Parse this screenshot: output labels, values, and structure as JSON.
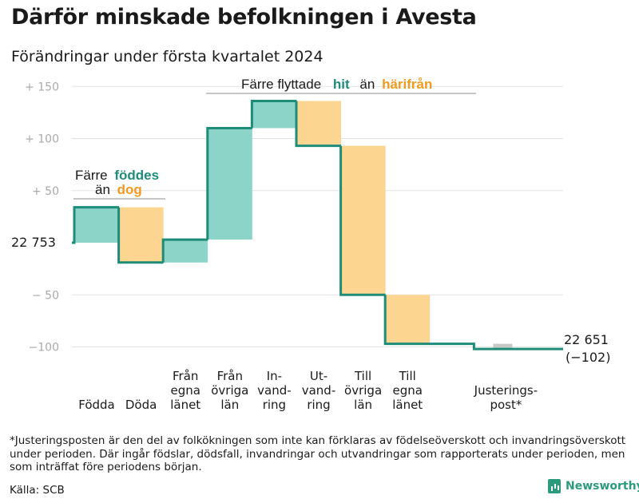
{
  "title": "Därför minskade befolkningen i Avesta",
  "subtitle": "Förändringar under första kvartalet 2024",
  "footnote": "*Justeringsposten är den del av folkökningen som inte kan förklaras av födelseöverskott och invandringsöverskott under perioden. Där ingår födslar, dödsfall, invandringar och utvandringar som rapporterats under perioden, men som inträffat före periodens början.",
  "source": "Källa: SCB",
  "brand": "Newsworthy",
  "colors": {
    "increase": "#8cd3c8",
    "decrease": "#fcd690",
    "adjustment": "#c8c8c8",
    "line": "#1d8c78",
    "teal_text": "#1d8c78",
    "orange_text": "#f29a1f",
    "grid": "#e3e3e3",
    "tick_text": "#aaaaaa"
  },
  "chart_data": {
    "type": "waterfall",
    "start_value": 22753,
    "start_label": "22  753",
    "end_value": 22651,
    "end_label": "22 651",
    "end_change_label": "(−102)",
    "ylim": [
      -100,
      150
    ],
    "yticks": [
      {
        "value": 150,
        "label": "+  150"
      },
      {
        "value": 100,
        "label": "+  100"
      },
      {
        "value": 50,
        "label": "+  50"
      },
      {
        "value": -50,
        "label": "−  50"
      },
      {
        "value": -100,
        "label": "−100"
      }
    ],
    "steps": [
      {
        "label": [
          "Födda"
        ],
        "change": 34,
        "kind": "increase"
      },
      {
        "label": [
          "Döda"
        ],
        "change": -53,
        "kind": "decrease"
      },
      {
        "label": [
          "Från",
          "egna",
          "länet"
        ],
        "change": 22,
        "kind": "increase"
      },
      {
        "label": [
          "Från",
          "övriga",
          "län"
        ],
        "change": 107,
        "kind": "increase"
      },
      {
        "label": [
          "In-",
          "vand-",
          "ring"
        ],
        "change": 26,
        "kind": "increase"
      },
      {
        "label": [
          "Ut-",
          "vand-",
          "ring"
        ],
        "change": -43,
        "kind": "decrease"
      },
      {
        "label": [
          "Till",
          "övriga",
          "län"
        ],
        "change": -143,
        "kind": "decrease"
      },
      {
        "label": [
          "Till",
          "egna",
          "länet"
        ],
        "change": -47,
        "kind": "decrease"
      },
      {
        "label": [
          "Justerings-",
          "post*"
        ],
        "change": -5,
        "kind": "adjustment"
      }
    ],
    "annotations": [
      {
        "group": "births",
        "line1": "Färre",
        "line1_hl": "föddes",
        "line2": "än",
        "line2_hl": "dog"
      },
      {
        "group": "moves",
        "text": "Färre flyttade",
        "hl1": "hit",
        "mid": "än",
        "hl2": "härifrån"
      }
    ]
  }
}
